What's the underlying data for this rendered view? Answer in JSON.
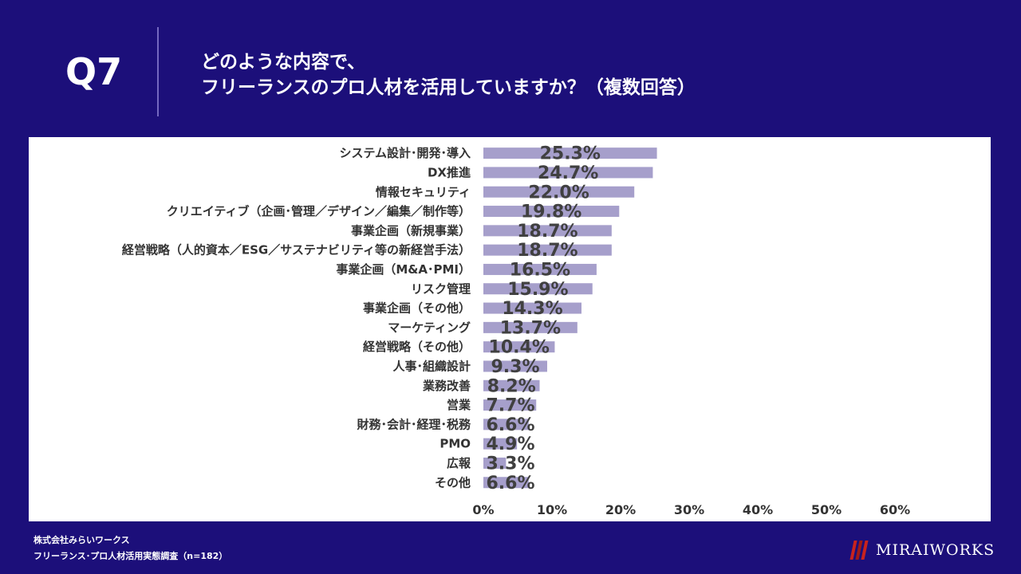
{
  "header": {
    "question_number": "Q7",
    "title_line1": "どのような内容で、",
    "title_line2": "フリーランスのプロ人材を活用していますか？（複数回答）"
  },
  "footer": {
    "company": "株式会社みらいワークス",
    "survey": "フリーランス･プロ人材活用実態調査（n=182）"
  },
  "logo": {
    "text": "MIRAIWORKS"
  },
  "colors": {
    "background": "#1c0f7a",
    "bar": "#a69fcb",
    "label": "#333333",
    "value": "#404040"
  },
  "chart_data": {
    "type": "bar",
    "orientation": "horizontal",
    "categories": [
      "システム設計･開発･導入",
      "DX推進",
      "情報セキュリティ",
      "クリエイティブ（企画･管理／デザイン／編集／制作等）",
      "事業企画（新規事業）",
      "経営戦略（人的資本／ESG／サステナビリティ等の新経営手法）",
      "事業企画（M&A･PMI）",
      "リスク管理",
      "事業企画（その他）",
      "マーケティング",
      "経営戦略（その他）",
      "人事･組織設計",
      "業務改善",
      "営業",
      "財務･会計･経理･税務",
      "PMO",
      "広報",
      "その他"
    ],
    "values": [
      25.3,
      24.7,
      22.0,
      19.8,
      18.7,
      18.7,
      16.5,
      15.9,
      14.3,
      13.7,
      10.4,
      9.3,
      8.2,
      7.7,
      6.6,
      4.9,
      3.3,
      6.6
    ],
    "value_labels": [
      "25.3%",
      "24.7%",
      "22.0%",
      "19.8%",
      "18.7%",
      "18.7%",
      "16.5%",
      "15.9%",
      "14.3%",
      "13.7%",
      "10.4%",
      "9.3%",
      "8.2%",
      "7.7%",
      "6.6%",
      "4.9%",
      "3.3%",
      "6.6%"
    ],
    "xlim": [
      0,
      60
    ],
    "xticks": [
      "0%",
      "10%",
      "20%",
      "30%",
      "40%",
      "50%",
      "60%"
    ],
    "xtick_values": [
      0,
      10,
      20,
      30,
      40,
      50,
      60
    ],
    "title": "",
    "xlabel": "",
    "ylabel": ""
  }
}
